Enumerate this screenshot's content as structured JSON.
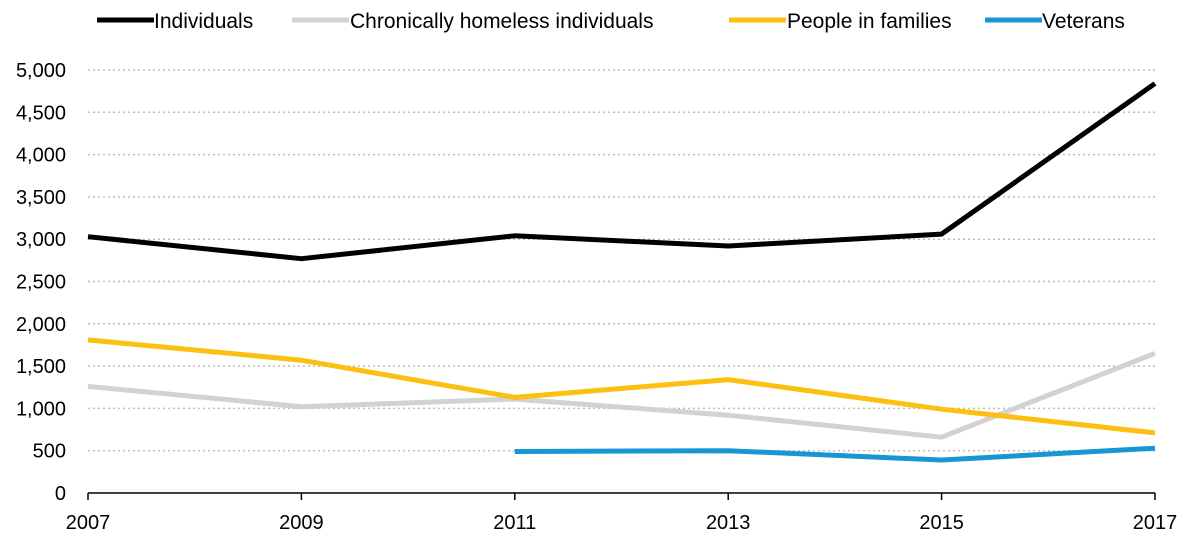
{
  "chart_data": {
    "type": "line",
    "title": "",
    "xlabel": "",
    "ylabel": "",
    "x": [
      2007,
      2009,
      2011,
      2013,
      2015,
      2017
    ],
    "x_tick_labels": [
      "2007",
      "2009",
      "2011",
      "2013",
      "2015",
      "2017"
    ],
    "ylim": [
      0,
      5000
    ],
    "y_ticks": [
      0,
      500,
      1000,
      1500,
      2000,
      2500,
      3000,
      3500,
      4000,
      4500,
      5000
    ],
    "y_tick_labels": [
      "0",
      "500",
      "1,000",
      "1,500",
      "2,000",
      "2,500",
      "3,000",
      "3,500",
      "4,000",
      "4,500",
      "5,000"
    ],
    "grid": "horizontal dotted",
    "legend_position": "top",
    "series": [
      {
        "name": "Individuals",
        "color": "#000000",
        "values": [
          3030,
          2770,
          3040,
          2920,
          3060,
          4840
        ]
      },
      {
        "name": "Chronically homeless individuals",
        "color": "#d2d2d2",
        "values": [
          1260,
          1020,
          1110,
          920,
          660,
          1650
        ]
      },
      {
        "name": "People in families",
        "color": "#fdbf11",
        "values": [
          1810,
          1570,
          1130,
          1340,
          990,
          710
        ]
      },
      {
        "name": "Veterans",
        "color": "#1696d2",
        "values": [
          null,
          null,
          490,
          500,
          390,
          530
        ]
      }
    ]
  }
}
